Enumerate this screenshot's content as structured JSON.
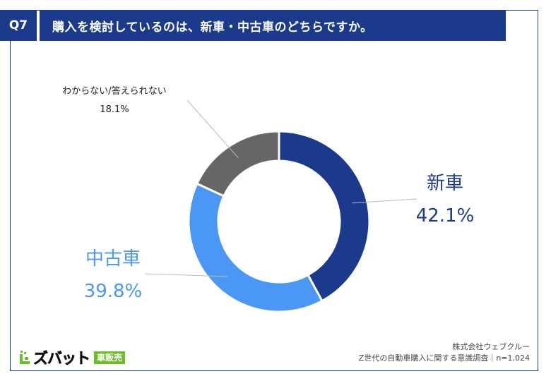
{
  "header": {
    "badge": "Q7",
    "question": "購入を検討しているのは、新車・中古車のどちらですか。"
  },
  "chart_data": {
    "type": "pie",
    "donut": true,
    "unit": "%",
    "categories": [
      "新車",
      "中古車",
      "わからない/答えられない"
    ],
    "values": [
      42.1,
      39.8,
      18.1
    ],
    "labels": [
      "42.1%",
      "39.8%",
      "18.1%"
    ],
    "colors": [
      "#1b3a8c",
      "#4a97f5",
      "#666666"
    ],
    "label_colors": [
      "#1b3a8c",
      "#4a97f5",
      "#222222"
    ]
  },
  "footer": {
    "company": "株式会社ウェブクルー",
    "survey": "Z世代の自動車購入に関する意識調査｜n=1,024"
  },
  "logo": {
    "name": "ズバット",
    "tag": "車販売",
    "brand_color": "#6cbd2a"
  }
}
